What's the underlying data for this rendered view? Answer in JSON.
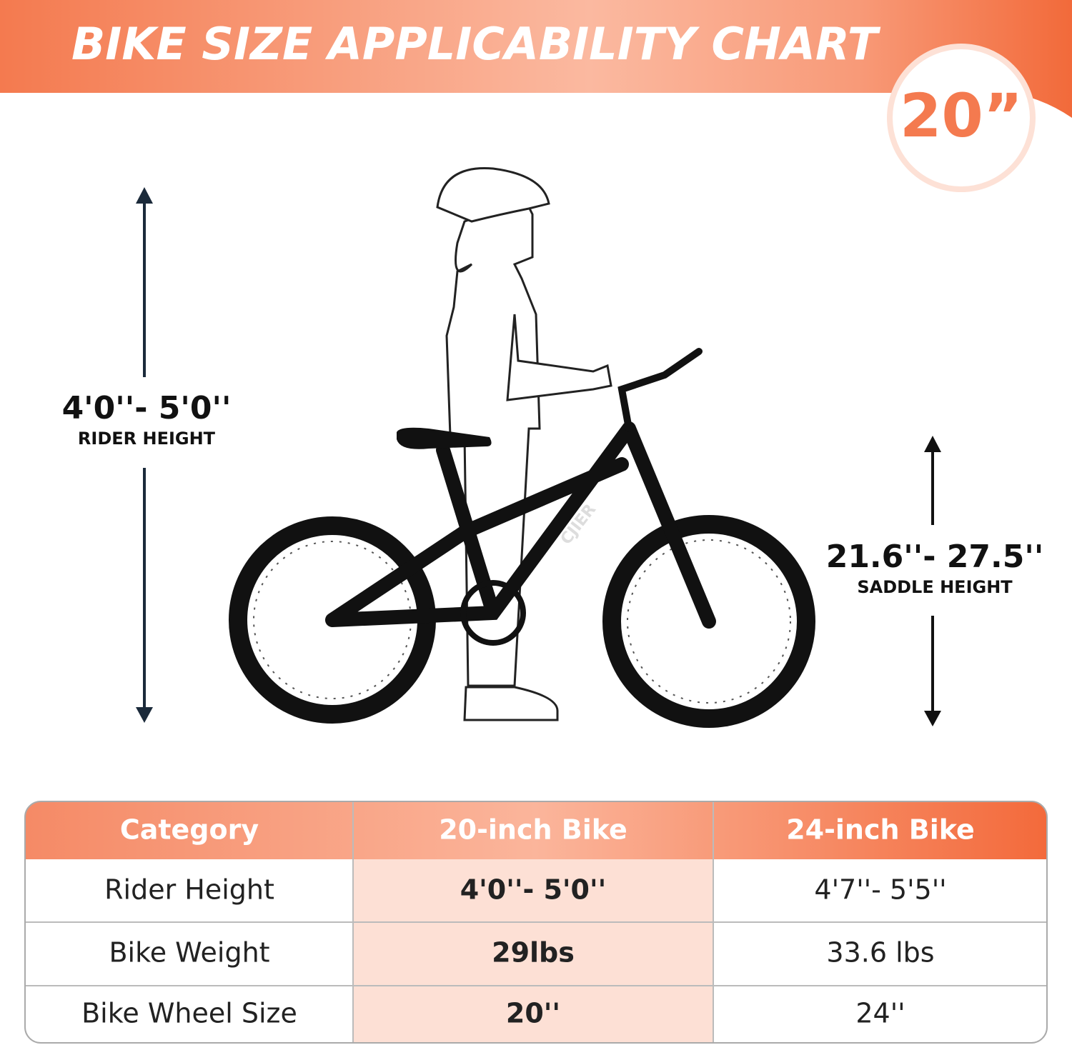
{
  "title": "BIKE SIZE APPLICABILITY CHART",
  "badge": "20”",
  "rider": {
    "value": "4'0''- 5'0''",
    "label": "RIDER HEIGHT"
  },
  "saddle": {
    "value": "21.6''- 27.5''",
    "label": "SADDLE HEIGHT"
  },
  "table": {
    "header": [
      "Category",
      "20-inch Bike",
      "24-inch Bike"
    ],
    "rows": [
      [
        "Rider Height",
        "4'0''- 5'0''",
        "4'7''- 5'5''"
      ],
      [
        "Bike Weight",
        "29lbs",
        "33.6 lbs"
      ],
      [
        "Bike Wheel Size",
        "20''",
        "24''"
      ]
    ]
  }
}
